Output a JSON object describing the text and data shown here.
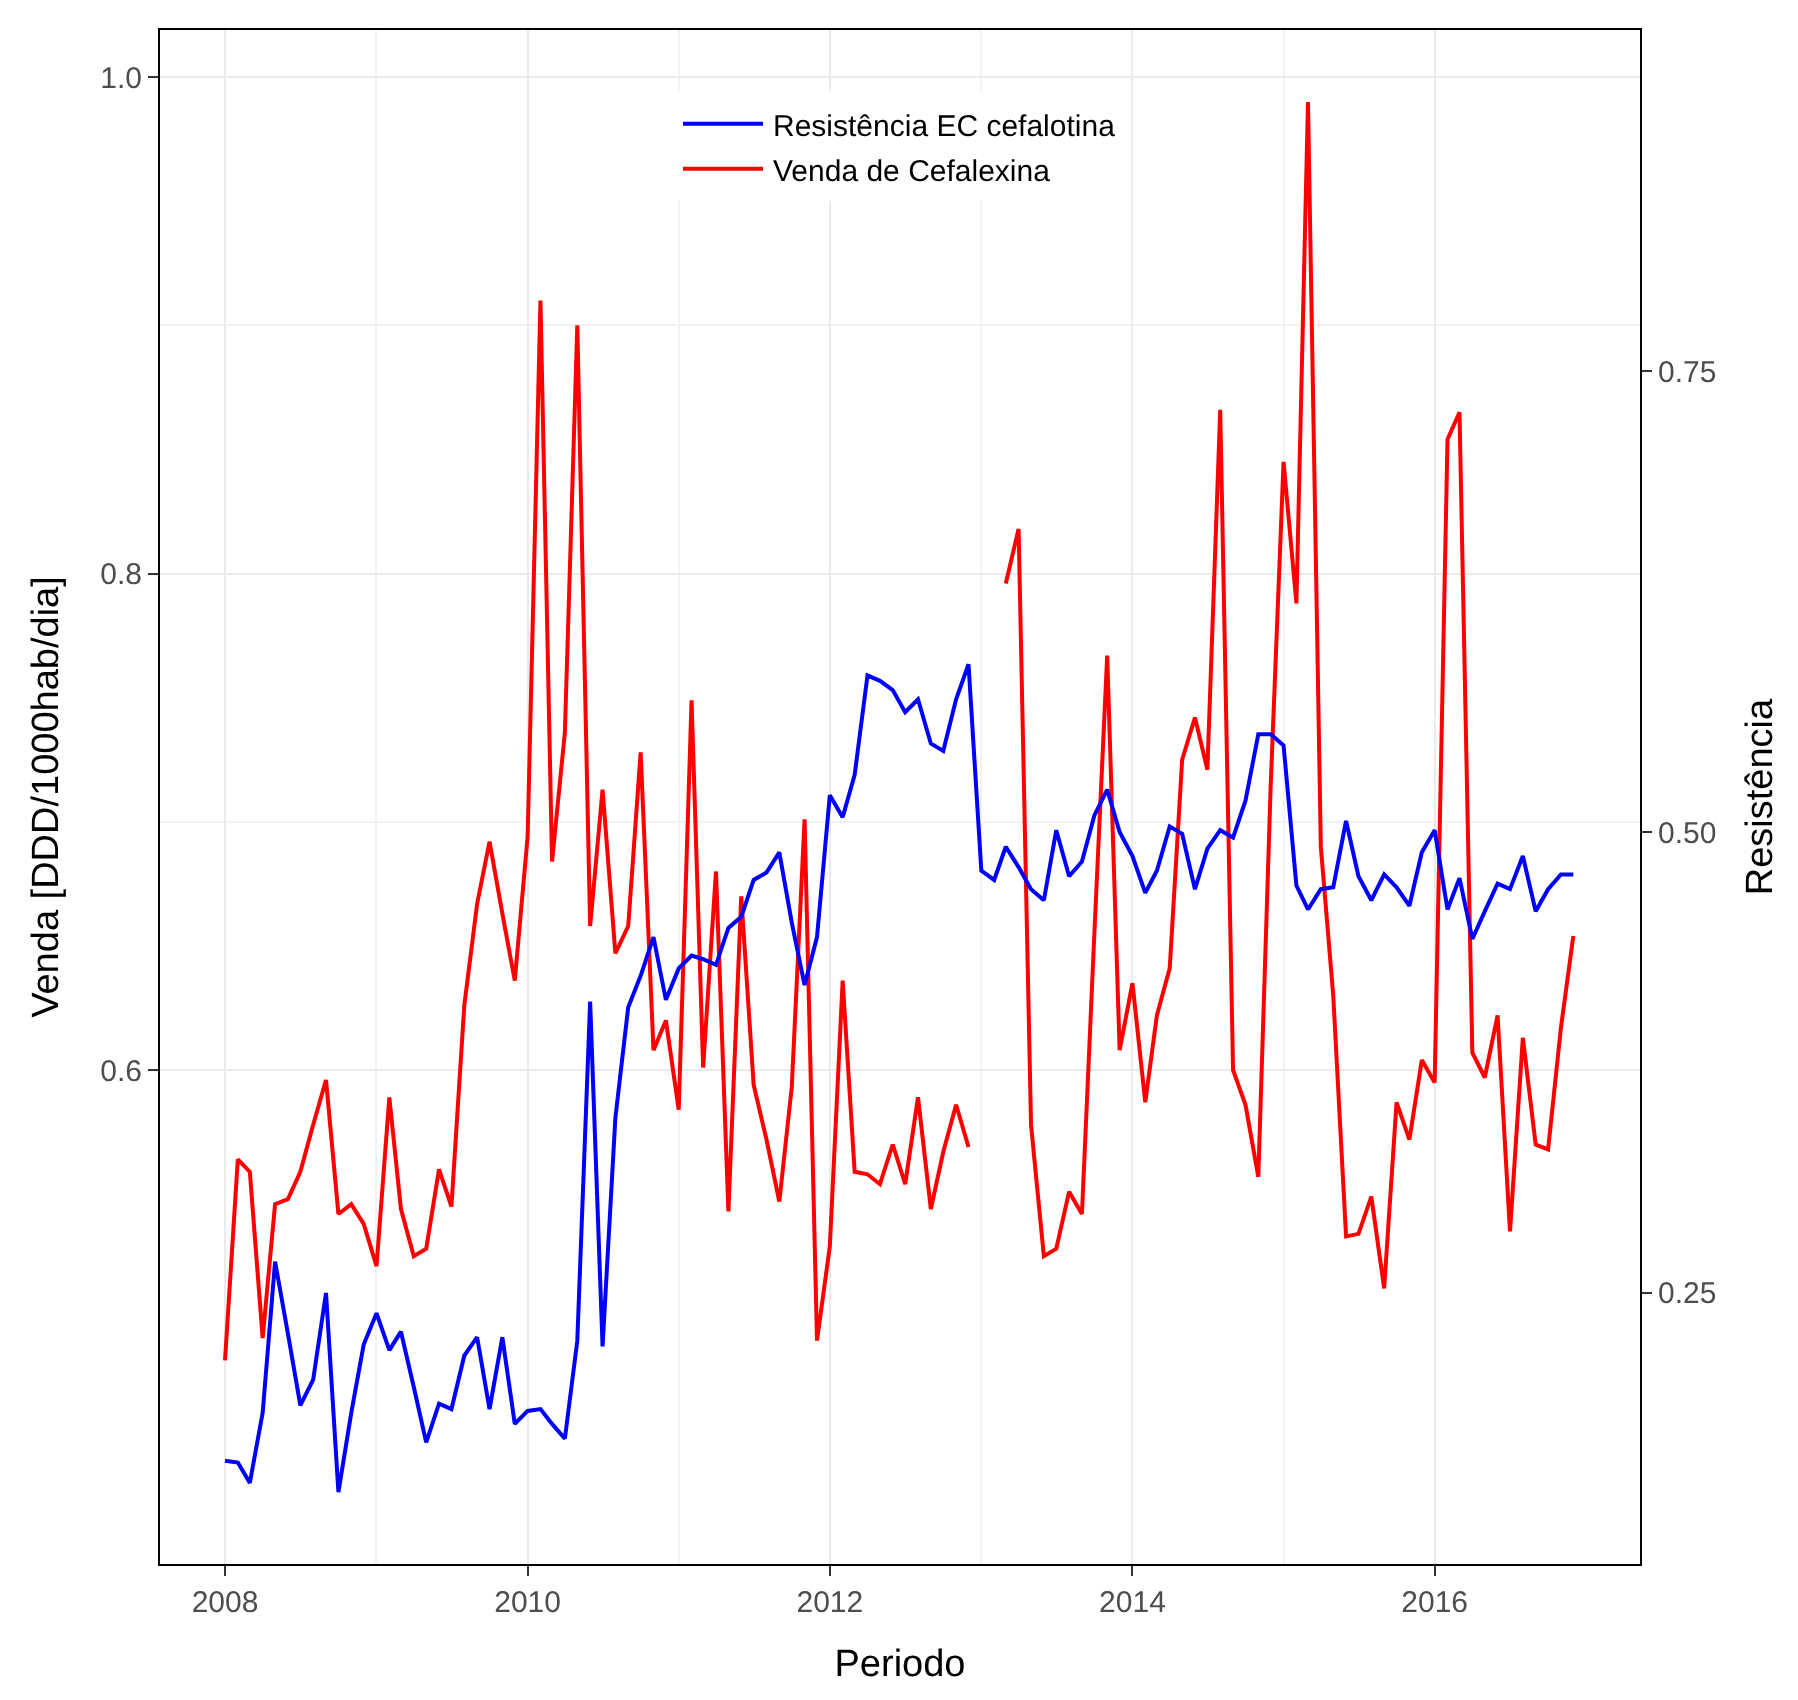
{
  "chart_data": {
    "type": "line",
    "xlabel": "Periodo",
    "ylabel": "Venda [DDD/1000hab/dia]",
    "y2label": "Resistência",
    "x": [
      "2008-01",
      "2008-02",
      "2008-03",
      "2008-04",
      "2008-05",
      "2008-06",
      "2008-07",
      "2008-08",
      "2008-09",
      "2008-10",
      "2008-11",
      "2008-12",
      "2009-01",
      "2009-02",
      "2009-03",
      "2009-04",
      "2009-05",
      "2009-06",
      "2009-07",
      "2009-08",
      "2009-09",
      "2009-10",
      "2009-11",
      "2009-12",
      "2010-01",
      "2010-02",
      "2010-03",
      "2010-04",
      "2010-05",
      "2010-06",
      "2010-07",
      "2010-08",
      "2010-09",
      "2010-10",
      "2010-11",
      "2010-12",
      "2011-01",
      "2011-02",
      "2011-03",
      "2011-04",
      "2011-05",
      "2011-06",
      "2011-07",
      "2011-08",
      "2011-09",
      "2011-10",
      "2011-11",
      "2011-12",
      "2012-01",
      "2012-02",
      "2012-03",
      "2012-04",
      "2012-05",
      "2012-06",
      "2012-07",
      "2012-08",
      "2012-09",
      "2012-10",
      "2012-11",
      "2012-12",
      "2013-01",
      "2013-02",
      "2013-03",
      "2013-04",
      "2013-05",
      "2013-06",
      "2013-07",
      "2013-08",
      "2013-09",
      "2013-10",
      "2013-11",
      "2013-12",
      "2014-01",
      "2014-02",
      "2014-03",
      "2014-04",
      "2014-05",
      "2014-06",
      "2014-07",
      "2014-08",
      "2014-09",
      "2014-10",
      "2014-11",
      "2014-12",
      "2015-01",
      "2015-02",
      "2015-03",
      "2015-04",
      "2015-05",
      "2015-06",
      "2015-07",
      "2015-08",
      "2015-09",
      "2015-10",
      "2015-11",
      "2015-12",
      "2016-01",
      "2016-02",
      "2016-03",
      "2016-04",
      "2016-05",
      "2016-06",
      "2016-07",
      "2016-08",
      "2016-09",
      "2016-10",
      "2016-11",
      "2016-12"
    ],
    "series": [
      {
        "name": "Resistência EC cefalotina",
        "color": "#0000ff",
        "axis": "y2",
        "values": [
          0.159,
          0.158,
          0.147,
          0.185,
          0.267,
          0.228,
          0.189,
          0.203,
          0.25,
          0.142,
          0.185,
          0.222,
          0.239,
          0.219,
          0.229,
          0.199,
          0.169,
          0.19,
          0.187,
          0.216,
          0.226,
          0.187,
          0.226,
          0.179,
          0.186,
          0.187,
          0.179,
          0.171,
          0.224,
          0.408,
          0.221,
          0.345,
          0.405,
          0.422,
          0.443,
          0.409,
          0.426,
          0.433,
          0.431,
          0.428,
          0.448,
          0.454,
          0.474,
          0.478,
          0.489,
          0.451,
          0.417,
          0.443,
          0.52,
          0.508,
          0.531,
          0.585,
          0.582,
          0.577,
          0.565,
          0.572,
          0.548,
          0.544,
          0.572,
          0.591,
          0.479,
          0.474,
          0.492,
          0.481,
          0.469,
          0.463,
          0.501,
          0.476,
          0.484,
          0.509,
          0.523,
          0.5,
          0.487,
          0.467,
          0.479,
          0.503,
          0.499,
          0.469,
          0.491,
          0.501,
          0.497,
          0.517,
          0.553,
          0.553,
          0.547,
          0.471,
          0.458,
          0.469,
          0.47,
          0.506,
          0.476,
          0.463,
          0.477,
          0.47,
          0.46,
          0.489,
          0.501,
          0.458,
          0.475,
          0.442,
          0.457,
          0.472,
          0.469,
          0.487,
          0.457,
          0.469,
          0.477,
          0.477
        ]
      },
      {
        "name": "Venda de Cefalexina",
        "color": "#ff0000",
        "values": [
          0.483,
          0.564,
          0.559,
          0.492,
          0.546,
          0.548,
          0.559,
          0.578,
          0.596,
          0.542,
          0.546,
          0.538,
          0.521,
          0.589,
          0.544,
          0.525,
          0.528,
          0.56,
          0.545,
          0.626,
          0.667,
          0.692,
          0.663,
          0.636,
          0.694,
          0.91,
          0.684,
          0.736,
          0.9,
          0.658,
          0.713,
          0.647,
          0.658,
          0.728,
          0.608,
          0.62,
          0.584,
          0.749,
          0.601,
          0.68,
          0.543,
          0.67,
          0.594,
          0.572,
          0.547,
          0.593,
          0.701,
          0.491,
          0.529,
          0.636,
          0.559,
          0.558,
          0.554,
          0.57,
          0.554,
          0.589,
          0.544,
          0.567,
          0.586,
          0.569,
          null,
          null,
          0.796,
          0.818,
          0.578,
          0.525,
          0.528,
          0.551,
          0.542,
          0.655,
          0.767,
          0.608,
          0.635,
          0.587,
          0.622,
          0.641,
          0.725,
          0.742,
          0.721,
          0.866,
          0.6,
          0.586,
          0.557,
          0.715,
          0.845,
          0.788,
          0.99,
          0.69,
          0.63,
          0.533,
          0.534,
          0.549,
          0.512,
          0.587,
          0.572,
          0.604,
          0.595,
          0.854,
          0.865,
          0.607,
          0.597,
          0.622,
          0.535,
          0.613,
          0.57,
          0.568,
          0.617,
          0.654
        ]
      }
    ],
    "xlim": [
      "2007-07-28",
      "2017-05-11"
    ],
    "xticks": [
      "2008",
      "2010",
      "2012",
      "2014",
      "2016"
    ],
    "ylim": [
      0.401,
      1.019
    ],
    "yticks": [
      0.6,
      0.8,
      {
        "value": 1.0,
        "label": "1.0"
      }
    ],
    "y2lim": [
      0.103,
      0.935
    ],
    "y2ticks": [
      0.25,
      {
        "value": 0.5,
        "label": "0.50"
      },
      0.75
    ],
    "grid": true,
    "legend": "top",
    "marker": "none",
    "line_style": "solid"
  }
}
